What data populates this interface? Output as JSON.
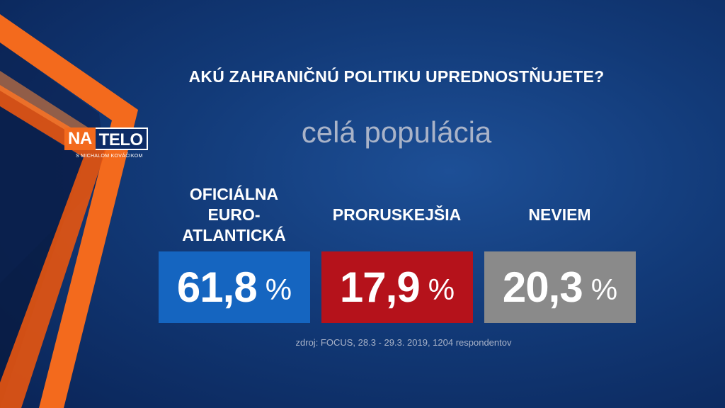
{
  "logo": {
    "na": "NA",
    "telo": "TELO",
    "sub": "S MICHALOM KOVÁČIKOM"
  },
  "colors": {
    "background": "#123a78",
    "accent_orange": "#f36a1d",
    "bar_blue": "#1565c0",
    "bar_red": "#b5121b",
    "bar_gray": "#8a8a8a"
  },
  "chart_data": {
    "type": "table",
    "title": "AKÚ ZAHRANIČNÚ POLITIKU UPREDNOSTŇUJETE?",
    "subtitle": "celá populácia",
    "categories": [
      "OFICIÁLNA EURO-ATLANTICKÁ",
      "PRORUSKEJŠIA",
      "NEVIEM"
    ],
    "values": [
      61.8,
      17.9,
      20.3
    ],
    "items": [
      {
        "label_lines": [
          "OFICIÁLNA",
          "EURO-",
          "ATLANTICKÁ"
        ],
        "value_text": "61,8",
        "unit": "%",
        "color": "#1565c0"
      },
      {
        "label_lines": [
          "PRORUSKEJŠIA"
        ],
        "value_text": "17,9",
        "unit": "%",
        "color": "#b5121b"
      },
      {
        "label_lines": [
          "NEVIEM"
        ],
        "value_text": "20,3",
        "unit": "%",
        "color": "#8a8a8a"
      }
    ],
    "source": "zdroj: FOCUS, 28.3 - 29.3. 2019, 1204 respondentov"
  }
}
